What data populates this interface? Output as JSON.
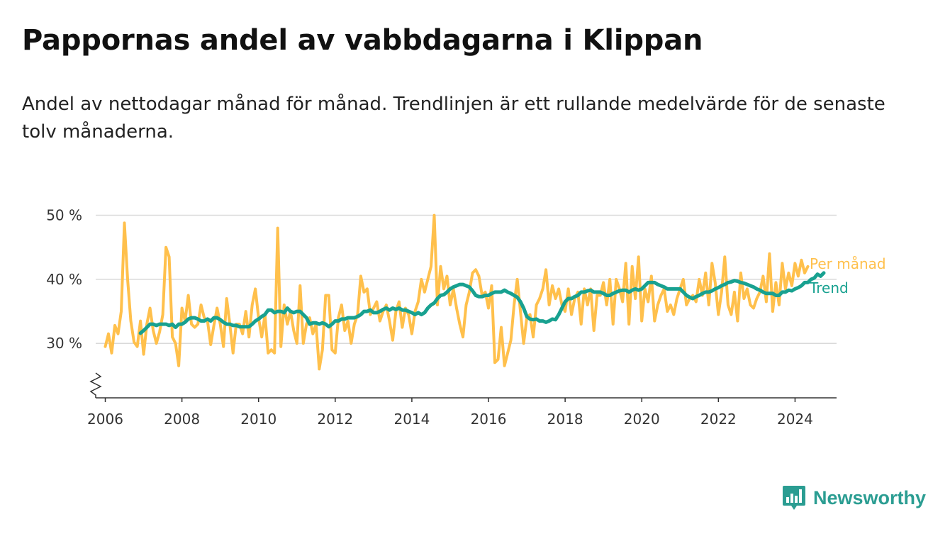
{
  "title": "Pappornas andel av vabbdagarna i Klippan",
  "subtitle": "Andel av nettodagar månad för månad. Trendlinjen är ett rullande medelvärde för de senaste tolv månaderna.",
  "brand": {
    "name": "Newsworthy",
    "icon": "newsworthy-logo-icon",
    "color": "#2b9d92"
  },
  "chart_data": {
    "type": "line",
    "title": "Pappornas andel av vabbdagarna i Klippan",
    "subtitle": "Andel av nettodagar månad för månad. Trendlinjen är ett rullande medelvärde för de senaste tolv månaderna.",
    "xlabel": "",
    "ylabel": "",
    "x_ticks": [
      "2006",
      "2008",
      "2010",
      "2012",
      "2014",
      "2016",
      "2018",
      "2020",
      "2022",
      "2024"
    ],
    "y_ticks": [
      "30 %",
      "40 %",
      "50 %"
    ],
    "y_tick_values": [
      30,
      40,
      50
    ],
    "xlim": [
      "2005-10",
      "2025-02"
    ],
    "ylim": [
      21.5,
      51.5
    ],
    "y_axis_break": true,
    "grid": true,
    "series": [
      {
        "name": "Per månad",
        "color": "#ffc04c",
        "start": "2006-01",
        "values": [
          29.5,
          31.5,
          28.5,
          32.8,
          31.5,
          35.0,
          48.8,
          40.0,
          33.5,
          30.2,
          29.5,
          33.5,
          28.3,
          33.0,
          35.5,
          32.0,
          30.0,
          31.8,
          34.5,
          45.0,
          43.5,
          31.0,
          30.0,
          26.5,
          35.5,
          33.5,
          37.5,
          33.0,
          32.5,
          33.0,
          36.0,
          34.0,
          33.5,
          29.8,
          32.8,
          35.5,
          33.0,
          29.5,
          37.0,
          33.0,
          28.5,
          33.0,
          33.0,
          31.5,
          35.0,
          31.0,
          36.0,
          38.5,
          34.0,
          31.0,
          34.5,
          28.5,
          29.0,
          28.5,
          48.0,
          29.5,
          36.0,
          33.0,
          35.0,
          32.0,
          30.0,
          39.0,
          30.0,
          33.0,
          34.0,
          31.5,
          33.0,
          26.0,
          29.0,
          37.5,
          37.5,
          29.0,
          28.5,
          34.0,
          36.0,
          32.0,
          33.5,
          30.0,
          33.0,
          34.5,
          40.5,
          38.0,
          38.5,
          34.5,
          35.5,
          36.5,
          33.5,
          35.0,
          36.0,
          33.5,
          30.5,
          35.0,
          36.5,
          32.5,
          35.5,
          34.5,
          31.5,
          35.0,
          36.5,
          40.0,
          38.0,
          40.0,
          42.0,
          50.0,
          36.0,
          42.0,
          38.5,
          40.5,
          36.0,
          38.5,
          35.5,
          33.0,
          31.0,
          36.0,
          38.0,
          41.0,
          41.5,
          40.5,
          37.5,
          38.0,
          35.5,
          39.0,
          27.0,
          27.5,
          32.5,
          26.5,
          28.5,
          30.5,
          36.0,
          40.0,
          35.0,
          30.0,
          34.0,
          34.5,
          31.0,
          36.0,
          37.0,
          38.5,
          41.5,
          36.0,
          39.0,
          37.0,
          38.5,
          36.0,
          35.0,
          38.5,
          34.5,
          37.0,
          38.0,
          33.0,
          38.5,
          36.0,
          38.5,
          32.0,
          37.5,
          37.5,
          39.5,
          36.0,
          40.0,
          33.0,
          40.0,
          38.5,
          36.5,
          42.5,
          33.0,
          42.0,
          37.0,
          43.5,
          33.5,
          38.5,
          36.5,
          40.5,
          33.5,
          36.0,
          37.5,
          38.5,
          35.0,
          36.0,
          34.5,
          37.0,
          38.5,
          40.0,
          36.0,
          37.0,
          37.5,
          36.5,
          40.0,
          37.5,
          41.0,
          36.0,
          42.5,
          39.5,
          34.5,
          38.0,
          43.5,
          36.0,
          34.5,
          38.0,
          33.5,
          41.0,
          37.0,
          38.5,
          36.0,
          35.5,
          37.0,
          38.0,
          40.5,
          36.5,
          44.0,
          35.0,
          39.5,
          36.0,
          42.5,
          38.5,
          41.0,
          39.0,
          42.5,
          40.5,
          43.0,
          41.0,
          42.0
        ]
      },
      {
        "name": "Trend",
        "color": "#18a190",
        "start": "2006-12",
        "values": [
          31.6,
          32.0,
          32.5,
          33.0,
          33.0,
          32.8,
          33.0,
          33.0,
          33.0,
          32.8,
          33.0,
          32.5,
          33.0,
          33.0,
          33.3,
          33.8,
          34.0,
          34.0,
          33.8,
          33.5,
          33.5,
          33.8,
          33.5,
          34.0,
          34.0,
          33.7,
          33.3,
          33.0,
          33.0,
          32.8,
          32.8,
          32.6,
          32.6,
          32.6,
          32.6,
          33.0,
          33.5,
          33.8,
          34.2,
          34.5,
          35.2,
          35.2,
          34.8,
          35.0,
          35.0,
          34.8,
          35.5,
          35.0,
          34.8,
          35.0,
          35.0,
          34.5,
          34.0,
          33.0,
          33.2,
          33.2,
          33.0,
          33.2,
          33.0,
          32.6,
          33.0,
          33.5,
          33.5,
          33.8,
          33.8,
          34.0,
          34.0,
          34.0,
          34.2,
          34.5,
          35.0,
          35.0,
          35.2,
          34.8,
          34.8,
          35.0,
          35.3,
          35.5,
          35.2,
          35.5,
          35.3,
          35.5,
          35.2,
          35.2,
          35.0,
          34.8,
          34.5,
          34.8,
          34.5,
          34.8,
          35.5,
          36.0,
          36.3,
          37.0,
          37.5,
          37.6,
          38.0,
          38.5,
          38.8,
          39.0,
          39.2,
          39.2,
          39.0,
          38.8,
          38.2,
          37.5,
          37.3,
          37.3,
          37.5,
          37.5,
          37.8,
          38.0,
          38.0,
          38.0,
          38.3,
          38.0,
          37.8,
          37.5,
          37.2,
          36.5,
          35.5,
          34.2,
          33.8,
          33.7,
          33.8,
          33.5,
          33.5,
          33.3,
          33.5,
          33.8,
          33.7,
          34.5,
          35.5,
          36.5,
          37.0,
          37.0,
          37.3,
          37.5,
          38.0,
          38.0,
          38.2,
          38.3,
          38.0,
          38.0,
          38.0,
          37.8,
          37.5,
          37.5,
          37.8,
          38.0,
          38.2,
          38.3,
          38.3,
          38.0,
          38.3,
          38.5,
          38.3,
          38.5,
          39.0,
          39.5,
          39.5,
          39.5,
          39.2,
          39.0,
          38.8,
          38.5,
          38.5,
          38.5,
          38.5,
          38.5,
          38.0,
          37.5,
          37.2,
          37.0,
          37.3,
          37.5,
          37.8,
          38.0,
          38.0,
          38.2,
          38.5,
          38.7,
          39.0,
          39.2,
          39.5,
          39.6,
          39.8,
          39.7,
          39.5,
          39.4,
          39.2,
          39.0,
          38.8,
          38.5,
          38.3,
          38.0,
          37.8,
          37.8,
          37.8,
          37.5,
          37.5,
          38.0,
          38.0,
          38.3,
          38.2,
          38.5,
          38.7,
          39.0,
          39.5,
          39.5,
          40.0,
          40.2,
          40.8,
          40.5,
          41.0
        ]
      }
    ]
  }
}
